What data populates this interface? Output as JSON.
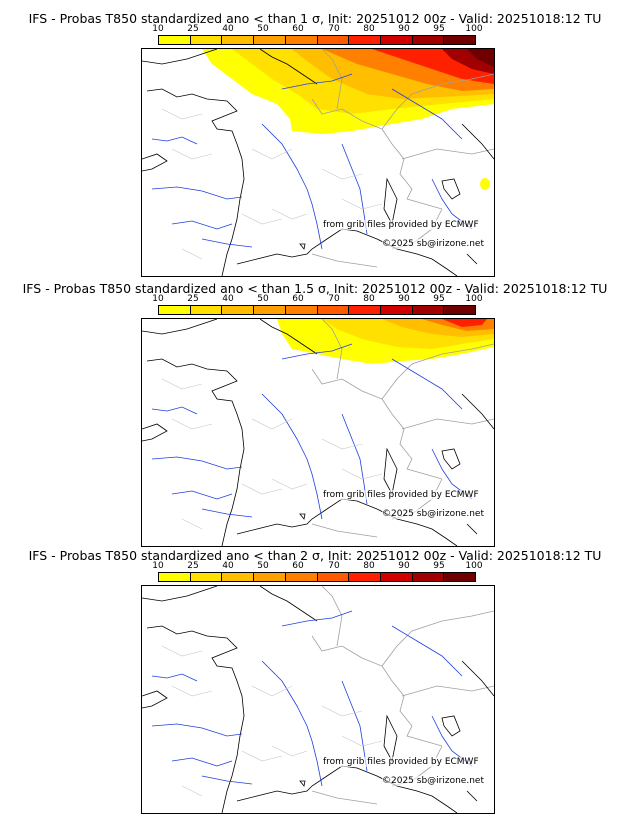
{
  "legend": {
    "ticks": [
      "10",
      "25",
      "40",
      "50",
      "60",
      "70",
      "80",
      "90",
      "95",
      "100"
    ],
    "colors": [
      "#ffff00",
      "#ffe000",
      "#ffbf00",
      "#ffa000",
      "#ff8000",
      "#ff5a00",
      "#ff2000",
      "#d00000",
      "#a00000",
      "#700000"
    ]
  },
  "credits": {
    "source": "from grib files provided by ECMWF",
    "copyright": "©2025 sb@irizone.net"
  },
  "panels": [
    {
      "title": "IFS - Probas T850  standardized ano < than 1 σ, Init: 20251012 00z - Valid: 20251018:12 TU",
      "max_probability_pct": 100
    },
    {
      "title": "IFS - Probas T850  standardized ano < than 1.5 σ, Init: 20251012 00z - Valid: 20251018:12 TU",
      "max_probability_pct": 95
    },
    {
      "title": "IFS - Probas T850  standardized ano < than 2 σ, Init: 20251012 00z - Valid: 20251018:12 TU",
      "max_probability_pct": 0
    }
  ]
}
